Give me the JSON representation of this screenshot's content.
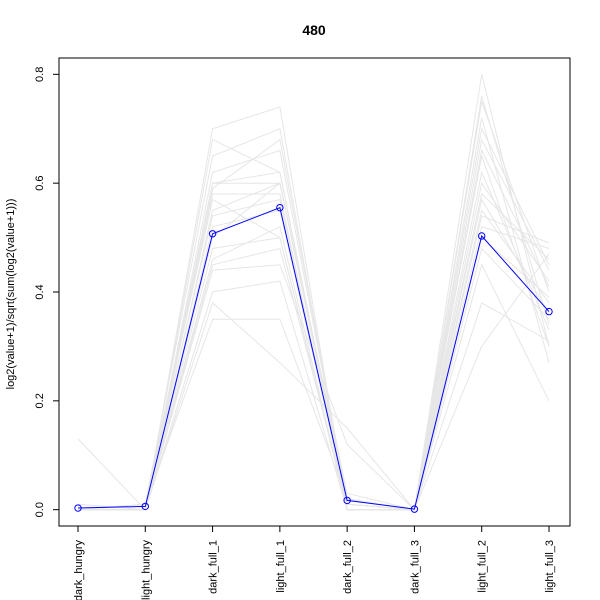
{
  "chart_data": {
    "type": "line",
    "title": "480",
    "ylabel": "log2(value+1)/sqrt(sum(log2(value+1)))",
    "xlabel": "",
    "categories": [
      "dark_hungry",
      "light_hungry",
      "dark_full_1",
      "light_full_1",
      "dark_full_2",
      "dark_full_3",
      "light_full_2",
      "light_full_3"
    ],
    "ylim": [
      -0.03,
      0.83
    ],
    "yticks": [
      0.0,
      0.2,
      0.4,
      0.6,
      0.8
    ],
    "ytick_labels": [
      "0.0",
      "0.2",
      "0.4",
      "0.6",
      "0.8"
    ],
    "grid": false,
    "highlight_color": "#0000ff",
    "background_color": "#e6e6e6",
    "series": [
      {
        "values": [
          0.003,
          0.006,
          0.507,
          0.555,
          0.017,
          0.001,
          0.503,
          0.364
        ],
        "highlight": true
      },
      {
        "values": [
          0.0,
          0.01,
          0.6,
          0.62,
          0.01,
          0.0,
          0.75,
          0.4
        ]
      },
      {
        "values": [
          0.0,
          0.0,
          0.55,
          0.6,
          0.02,
          0.0,
          0.7,
          0.45
        ]
      },
      {
        "values": [
          0.01,
          0.0,
          0.48,
          0.5,
          0.0,
          0.0,
          0.65,
          0.3
        ]
      },
      {
        "values": [
          0.0,
          0.01,
          0.65,
          0.7,
          0.01,
          0.0,
          0.55,
          0.38
        ]
      },
      {
        "values": [
          0.13,
          0.0,
          0.58,
          0.58,
          0.0,
          0.0,
          0.6,
          0.42
        ]
      },
      {
        "values": [
          0.0,
          0.0,
          0.45,
          0.48,
          0.01,
          0.0,
          0.52,
          0.48
        ]
      },
      {
        "values": [
          0.0,
          0.0,
          0.7,
          0.74,
          0.0,
          0.0,
          0.8,
          0.3
        ]
      },
      {
        "values": [
          0.0,
          0.01,
          0.35,
          0.35,
          0.02,
          0.0,
          0.45,
          0.2
        ]
      },
      {
        "values": [
          0.0,
          0.0,
          0.6,
          0.6,
          0.03,
          0.0,
          0.58,
          0.46
        ]
      },
      {
        "values": [
          0.0,
          0.0,
          0.52,
          0.55,
          0.01,
          0.0,
          0.48,
          0.35
        ]
      },
      {
        "values": [
          0.01,
          0.0,
          0.4,
          0.42,
          0.0,
          0.0,
          0.68,
          0.44
        ]
      },
      {
        "values": [
          0.0,
          0.0,
          0.62,
          0.66,
          0.02,
          0.0,
          0.72,
          0.27
        ]
      },
      {
        "values": [
          0.0,
          0.01,
          0.57,
          0.5,
          0.0,
          0.0,
          0.62,
          0.33
        ]
      },
      {
        "values": [
          0.0,
          0.0,
          0.5,
          0.6,
          0.01,
          0.0,
          0.54,
          0.49
        ]
      },
      {
        "values": [
          0.0,
          0.0,
          0.44,
          0.45,
          0.12,
          0.0,
          0.38,
          0.31
        ]
      },
      {
        "values": [
          0.0,
          0.0,
          0.68,
          0.62,
          0.0,
          0.0,
          0.66,
          0.41
        ]
      },
      {
        "values": [
          0.0,
          0.01,
          0.54,
          0.57,
          0.01,
          0.0,
          0.57,
          0.36
        ]
      },
      {
        "values": [
          0.0,
          0.0,
          0.46,
          0.52,
          0.0,
          0.0,
          0.5,
          0.39
        ]
      },
      {
        "values": [
          0.0,
          0.0,
          0.59,
          0.68,
          0.02,
          0.0,
          0.76,
          0.34
        ]
      },
      {
        "values": [
          0.0,
          0.0,
          0.38,
          0.27,
          0.15,
          0.0,
          0.3,
          0.47
        ]
      }
    ]
  }
}
